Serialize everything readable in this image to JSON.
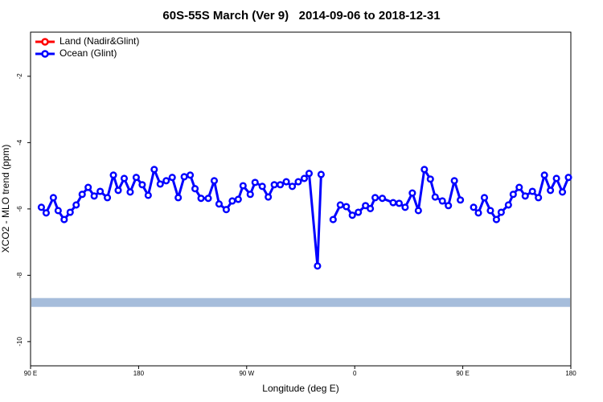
{
  "chart_data": {
    "type": "line",
    "title": "60S-55S March (Ver 9)   2014-09-06 to 2018-12-31",
    "x_label": "Longitude (deg E)",
    "y_label": "XCO2 - MLO trend (ppm)",
    "xlim": [
      90,
      540
    ],
    "ylim": [
      -10.73,
      -0.67
    ],
    "xticks": [
      {
        "value": 90,
        "label": "90 E"
      },
      180,
      {
        "value": 270,
        "label": "90 W"
      },
      {
        "value": 360,
        "label": "0"
      },
      {
        "value": 450,
        "label": "90 E"
      },
      {
        "value": 540,
        "label": "180"
      }
    ],
    "yticks": [
      -2,
      -4,
      -6,
      -8,
      -10
    ],
    "legend": "top-left",
    "hline": {
      "value": -8.82,
      "color": "#a6bddb"
    },
    "series": [
      {
        "name": "Land (Nadir&Glint)",
        "color": "#ff0000",
        "x": [],
        "values": []
      },
      {
        "name": "Ocean (Glint)",
        "color": "#0000ff",
        "x": [
          99,
          103,
          109,
          113,
          118,
          123,
          128,
          133,
          138,
          143,
          148,
          154,
          159,
          163,
          168,
          173,
          178,
          183,
          188,
          193,
          198,
          203,
          208,
          213,
          218,
          223,
          227,
          232,
          238,
          243,
          247,
          253,
          258,
          263,
          267,
          273,
          277,
          283,
          288,
          293,
          298,
          303,
          308,
          313,
          318,
          322,
          329,
          332,
          337,
          342,
          348,
          353,
          358,
          363,
          369,
          373,
          377,
          383,
          392,
          397,
          402,
          408,
          413,
          418,
          423,
          427,
          433,
          438,
          443,
          448,
          453,
          459,
          463,
          468,
          473,
          478,
          482,
          488,
          492,
          497,
          502,
          508,
          513,
          518,
          523,
          528,
          533,
          538
        ],
        "values": [
          -5.95,
          -6.12,
          -5.66,
          -6.05,
          -6.32,
          -6.1,
          -5.88,
          -5.56,
          -5.35,
          -5.61,
          -5.47,
          -5.66,
          -4.98,
          -5.44,
          -5.08,
          -5.49,
          -5.05,
          -5.27,
          -5.59,
          -4.81,
          -5.25,
          -5.15,
          -5.05,
          -5.66,
          -5.03,
          -4.98,
          -5.39,
          -5.68,
          -5.68,
          -5.15,
          -5.85,
          -6.02,
          -5.76,
          -5.71,
          -5.3,
          -5.56,
          -5.2,
          -5.32,
          -5.64,
          -5.27,
          -5.27,
          -5.18,
          -5.32,
          -5.18,
          -5.08,
          -4.93,
          -7.72,
          -4.96,
          null,
          -6.32,
          -5.88,
          -5.93,
          -6.19,
          -6.1,
          -5.9,
          -5.99,
          -5.66,
          -5.68,
          -5.81,
          -5.83,
          -5.95,
          -5.52,
          -6.05,
          -4.81,
          -5.1,
          -5.64,
          -5.76,
          -5.9,
          -5.15,
          -5.73,
          null,
          -5.95,
          -6.12,
          -5.66,
          -6.05,
          -6.32,
          -6.1,
          -5.88,
          -5.56,
          -5.35,
          -5.61,
          -5.47,
          -5.66,
          -4.98,
          -5.44,
          -5.08,
          -5.49,
          -5.05
        ]
      }
    ]
  }
}
